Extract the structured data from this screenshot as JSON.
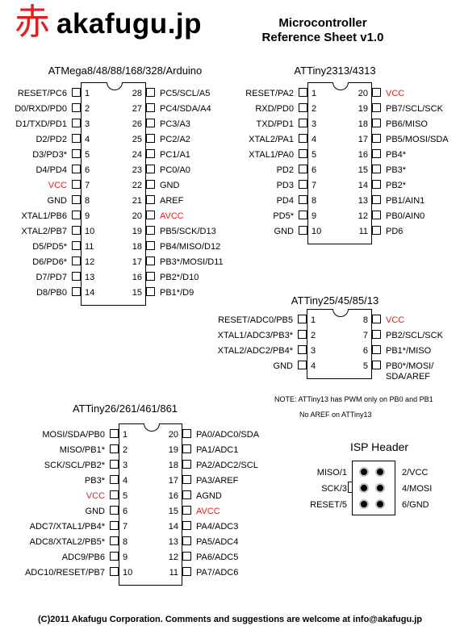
{
  "header": {
    "logo_kanji": "赤",
    "logo_text": "akafugu.jp",
    "title_line1": "Microcontroller",
    "title_line2": "Reference Sheet v1.0"
  },
  "colors": {
    "power": "#e02020"
  },
  "chips": [
    {
      "id": "atmega",
      "title": "ATMega8/48/88/168/328/Arduino",
      "left": [
        {
          "n": "1",
          "label": "RESET/PC6"
        },
        {
          "n": "2",
          "label": "D0/RXD/PD0"
        },
        {
          "n": "3",
          "label": "D1/TXD/PD1"
        },
        {
          "n": "4",
          "label": "D2/PD2"
        },
        {
          "n": "5",
          "label": "D3/PD3*"
        },
        {
          "n": "6",
          "label": "D4/PD4"
        },
        {
          "n": "7",
          "label": "VCC",
          "red": true
        },
        {
          "n": "8",
          "label": "GND"
        },
        {
          "n": "9",
          "label": "XTAL1/PB6"
        },
        {
          "n": "10",
          "label": "XTAL2/PB7"
        },
        {
          "n": "11",
          "label": "D5/PD5*"
        },
        {
          "n": "12",
          "label": "D6/PD6*"
        },
        {
          "n": "13",
          "label": "D7/PD7"
        },
        {
          "n": "14",
          "label": "D8/PB0"
        }
      ],
      "right": [
        {
          "n": "28",
          "label": "PC5/SCL/A5"
        },
        {
          "n": "27",
          "label": "PC4/SDA/A4"
        },
        {
          "n": "26",
          "label": "PC3/A3"
        },
        {
          "n": "25",
          "label": "PC2/A2"
        },
        {
          "n": "24",
          "label": "PC1/A1"
        },
        {
          "n": "23",
          "label": "PC0/A0"
        },
        {
          "n": "22",
          "label": "GND"
        },
        {
          "n": "21",
          "label": "AREF"
        },
        {
          "n": "20",
          "label": "AVCC",
          "red": true
        },
        {
          "n": "19",
          "label": "PB5/SCK/D13"
        },
        {
          "n": "18",
          "label": "PB4/MISO/D12"
        },
        {
          "n": "17",
          "label": "PB3*/MOSI/D11"
        },
        {
          "n": "16",
          "label": "PB2*/D10"
        },
        {
          "n": "15",
          "label": "PB1*/D9"
        }
      ]
    },
    {
      "id": "attiny2313",
      "title": "ATTiny2313/4313",
      "left": [
        {
          "n": "1",
          "label": "RESET/PA2"
        },
        {
          "n": "2",
          "label": "RXD/PD0"
        },
        {
          "n": "3",
          "label": "TXD/PD1"
        },
        {
          "n": "4",
          "label": "XTAL2/PA1"
        },
        {
          "n": "5",
          "label": "XTAL1/PA0"
        },
        {
          "n": "6",
          "label": "PD2"
        },
        {
          "n": "7",
          "label": "PD3"
        },
        {
          "n": "8",
          "label": "PD4"
        },
        {
          "n": "9",
          "label": "PD5*"
        },
        {
          "n": "10",
          "label": "GND"
        }
      ],
      "right": [
        {
          "n": "20",
          "label": "VCC",
          "red": true
        },
        {
          "n": "19",
          "label": "PB7/SCL/SCK"
        },
        {
          "n": "18",
          "label": "PB6/MISO"
        },
        {
          "n": "17",
          "label": "PB5/MOSI/SDA"
        },
        {
          "n": "16",
          "label": "PB4*"
        },
        {
          "n": "15",
          "label": "PB3*"
        },
        {
          "n": "14",
          "label": "PB2*"
        },
        {
          "n": "13",
          "label": "PB1/AIN1"
        },
        {
          "n": "12",
          "label": "PB0/AIN0"
        },
        {
          "n": "11",
          "label": "PD6"
        }
      ]
    },
    {
      "id": "attiny25",
      "title": "ATTiny25/45/85/13",
      "left": [
        {
          "n": "1",
          "label": "RESET/ADC0/PB5"
        },
        {
          "n": "2",
          "label": "XTAL1/ADC3/PB3*"
        },
        {
          "n": "3",
          "label": "XTAL2/ADC2/PB4*"
        },
        {
          "n": "4",
          "label": "GND"
        }
      ],
      "right": [
        {
          "n": "8",
          "label": "VCC",
          "red": true
        },
        {
          "n": "7",
          "label": "PB2/SCL/SCK"
        },
        {
          "n": "6",
          "label": "PB1*/MISO"
        },
        {
          "n": "5",
          "label": "PB0*/MOSI/",
          "label2": "SDA/AREF"
        }
      ]
    },
    {
      "id": "attiny26",
      "title": "ATTiny26/261/461/861",
      "left": [
        {
          "n": "1",
          "label": "MOSI/SDA/PB0"
        },
        {
          "n": "2",
          "label": "MISO/PB1*"
        },
        {
          "n": "3",
          "label": "SCK/SCL/PB2*"
        },
        {
          "n": "4",
          "label": "PB3*"
        },
        {
          "n": "5",
          "label": "VCC",
          "red": true
        },
        {
          "n": "6",
          "label": "GND"
        },
        {
          "n": "7",
          "label": "ADC7/XTAL1/PB4*"
        },
        {
          "n": "8",
          "label": "ADC8/XTAL2/PB5*"
        },
        {
          "n": "9",
          "label": "ADC9/PB6"
        },
        {
          "n": "10",
          "label": "ADC10/RESET/PB7"
        }
      ],
      "right": [
        {
          "n": "20",
          "label": "PA0/ADC0/SDA"
        },
        {
          "n": "19",
          "label": "PA1/ADC1"
        },
        {
          "n": "18",
          "label": "PA2/ADC2/SCL"
        },
        {
          "n": "17",
          "label": "PA3/AREF"
        },
        {
          "n": "16",
          "label": "AGND"
        },
        {
          "n": "15",
          "label": "AVCC",
          "red": true
        },
        {
          "n": "14",
          "label": "PA4/ADC3"
        },
        {
          "n": "13",
          "label": "PA5/ADC4"
        },
        {
          "n": "12",
          "label": "PA6/ADC5"
        },
        {
          "n": "11",
          "label": "PA7/ADC6"
        }
      ]
    }
  ],
  "notes": {
    "line1": "NOTE: ATTiny13 has PWM only on PB0 and PB1",
    "line2": "No AREF on ATTiny13"
  },
  "isp": {
    "title": "ISP Header",
    "left": [
      "MISO/1",
      "SCK/3",
      "RESET/5"
    ],
    "right": [
      "2/VCC",
      "4/MOSI",
      "6/GND"
    ]
  },
  "footer": "(C)2011 Akafugu Corporation. Comments and suggestions are welcome at info@akafugu.jp"
}
